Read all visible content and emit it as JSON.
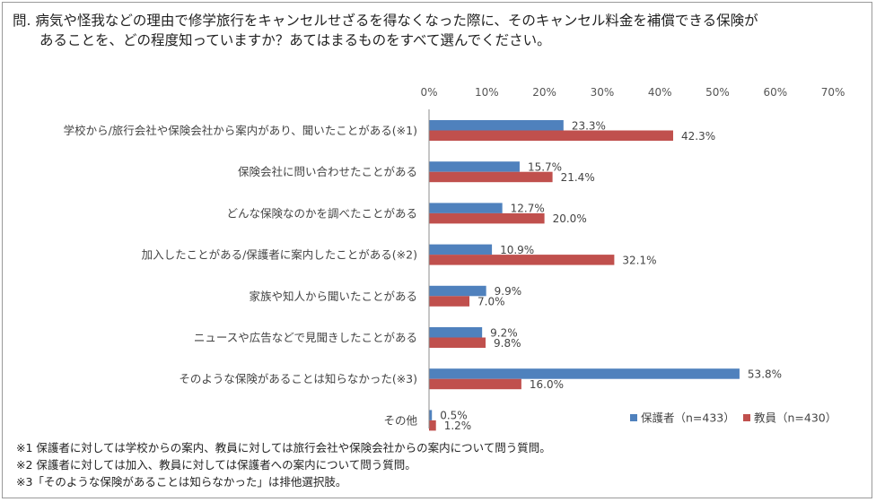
{
  "question": {
    "line1": "問. 病気や怪我などの理由で修学旅行をキャンセルせざるを得なくなった際に、そのキャンセル料金を補償できる保険が",
    "line2": "あることを、どの程度知っていますか？あてはまるものをすべて選んでください。"
  },
  "chart_data": {
    "type": "bar",
    "orientation": "horizontal",
    "x_ticks": [
      "0%",
      "10%",
      "20%",
      "30%",
      "40%",
      "50%",
      "60%",
      "70%"
    ],
    "xlim": [
      0,
      70
    ],
    "grid": false,
    "legend_position": "bottom-right",
    "categories": [
      "学校から/旅行会社や保険会社から案内があり、聞いたことがある(※1)",
      "保険会社に問い合わせたことがある",
      "どんな保険なのかを調べたことがある",
      "加入したことがある/保護者に案内したことがある(※2)",
      "家族や知人から聞いたことがある",
      "ニュースや広告などで見聞きしたことがある",
      "そのような保険があることは知らなかった(※3)",
      "その他"
    ],
    "series": [
      {
        "name": "保護者（n=433）",
        "color": "#4f81bd",
        "values": [
          23.3,
          15.7,
          12.7,
          10.9,
          9.9,
          9.2,
          53.8,
          0.5
        ],
        "labels": [
          "23.3%",
          "15.7%",
          "12.7%",
          "10.9%",
          "9.9%",
          "9.2%",
          "53.8%",
          "0.5%"
        ]
      },
      {
        "name": "教員（n=430）",
        "color": "#c0504d",
        "values": [
          42.3,
          21.4,
          20.0,
          32.1,
          7.0,
          9.8,
          16.0,
          1.2
        ],
        "labels": [
          "42.3%",
          "21.4%",
          "20.0%",
          "32.1%",
          "7.0%",
          "9.8%",
          "16.0%",
          "1.2%"
        ]
      }
    ]
  },
  "notes": [
    "※1 保護者に対しては学校からの案内、教員に対しては旅行会社や保険会社からの案内について問う質問。",
    "※2 保護者に対しては加入、教員に対しては保護者への案内について問う質問。",
    "※3「そのような保険があることは知らなかった」は排他選択肢。"
  ]
}
